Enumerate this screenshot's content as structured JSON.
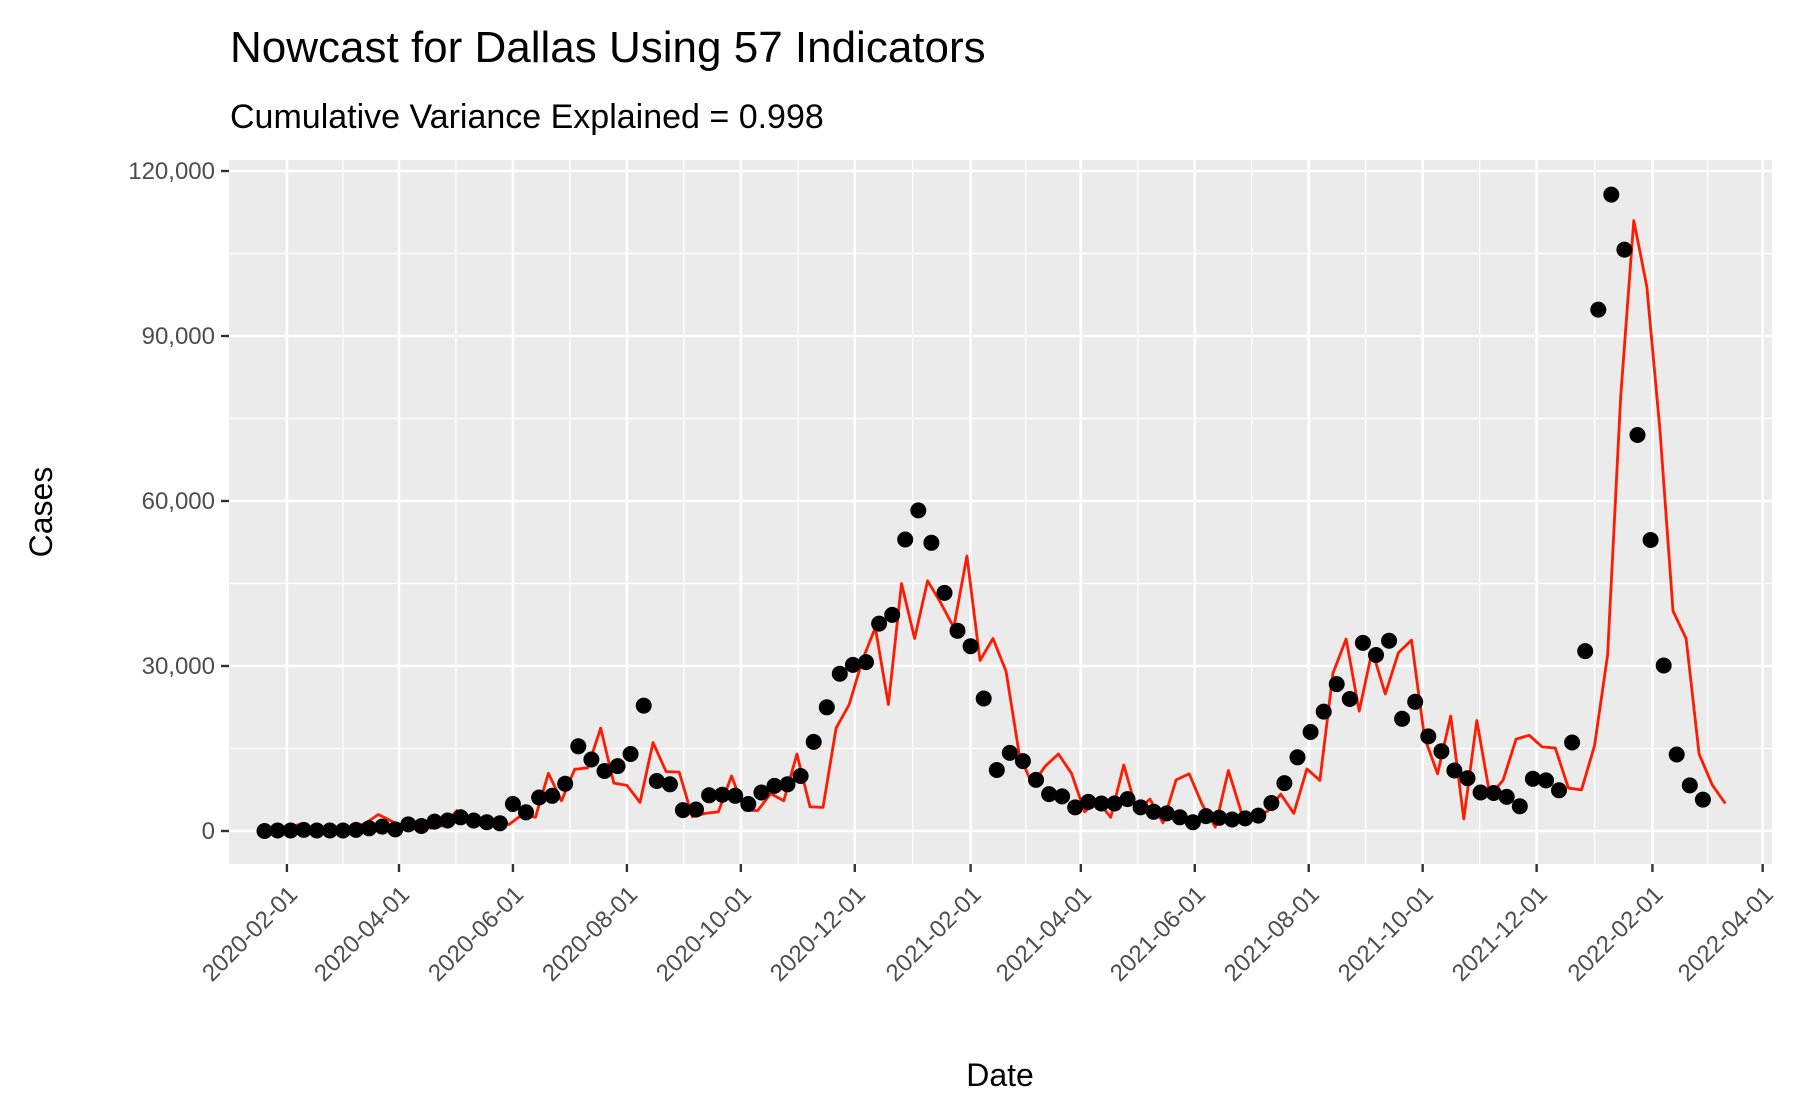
{
  "chart_data": {
    "type": "line",
    "title": "Nowcast for Dallas Using 57 Indicators",
    "subtitle": "Cumulative Variance Explained = 0.998",
    "xlabel": "Date",
    "ylabel": "Cases",
    "x_range": [
      "2020-01-01",
      "2022-04-06"
    ],
    "ylim": [
      -6000,
      122000
    ],
    "y_ticks": [
      0,
      30000,
      60000,
      90000,
      120000
    ],
    "y_tick_labels": [
      "0",
      "30,000",
      "60,000",
      "90,000",
      "120,000"
    ],
    "x_ticks": [
      "2020-02-01",
      "2020-04-01",
      "2020-06-01",
      "2020-08-01",
      "2020-10-01",
      "2020-12-01",
      "2021-02-01",
      "2021-04-01",
      "2021-06-01",
      "2021-08-01",
      "2021-10-01",
      "2021-12-01",
      "2022-02-01",
      "2022-04-01"
    ],
    "x_tick_labels": [
      "2020-02-01",
      "2020-04-01",
      "2020-06-01",
      "2020-08-01",
      "2020-10-01",
      "2020-12-01",
      "2021-02-01",
      "2021-04-01",
      "2021-06-01",
      "2021-08-01",
      "2021-10-01",
      "2021-12-01",
      "2022-02-01",
      "2022-04-01"
    ],
    "grid": true,
    "colors": {
      "panel": "#ebebeb",
      "grid": "#ffffff",
      "line": "#ff1a00",
      "points": "#000000"
    },
    "series": [
      {
        "style": "line",
        "color": "#ff1a00",
        "points": [
          [
            "2020-01-18",
            0
          ],
          [
            "2020-01-25",
            300
          ],
          [
            "2020-02-01",
            600
          ],
          [
            "2020-02-08",
            1200
          ],
          [
            "2020-02-15",
            200
          ],
          [
            "2020-02-22",
            100
          ],
          [
            "2020-02-29",
            300
          ],
          [
            "2020-03-07",
            600
          ],
          [
            "2020-03-14",
            1400
          ],
          [
            "2020-03-21",
            3000
          ],
          [
            "2020-03-28",
            1800
          ],
          [
            "2020-04-04",
            500
          ],
          [
            "2020-04-11",
            1500
          ],
          [
            "2020-04-18",
            500
          ],
          [
            "2020-04-25",
            1000
          ],
          [
            "2020-05-02",
            3700
          ],
          [
            "2020-05-09",
            1300
          ],
          [
            "2020-05-16",
            2300
          ],
          [
            "2020-05-23",
            1900
          ],
          [
            "2020-05-30",
            1200
          ],
          [
            "2020-06-06",
            3000
          ],
          [
            "2020-06-13",
            2500
          ],
          [
            "2020-06-20",
            10500
          ],
          [
            "2020-06-27",
            5500
          ],
          [
            "2020-07-04",
            11200
          ],
          [
            "2020-07-11",
            11500
          ],
          [
            "2020-07-18",
            18700
          ],
          [
            "2020-07-25",
            8700
          ],
          [
            "2020-08-01",
            8300
          ],
          [
            "2020-08-08",
            5200
          ],
          [
            "2020-08-15",
            16100
          ],
          [
            "2020-08-22",
            10800
          ],
          [
            "2020-08-29",
            10700
          ],
          [
            "2020-09-05",
            2600
          ],
          [
            "2020-09-12",
            3200
          ],
          [
            "2020-09-19",
            3500
          ],
          [
            "2020-09-26",
            10000
          ],
          [
            "2020-10-03",
            3800
          ],
          [
            "2020-10-10",
            3700
          ],
          [
            "2020-10-17",
            6800
          ],
          [
            "2020-10-24",
            5500
          ],
          [
            "2020-10-31",
            14000
          ],
          [
            "2020-11-07",
            4400
          ],
          [
            "2020-11-14",
            4300
          ],
          [
            "2020-11-21",
            18700
          ],
          [
            "2020-11-28",
            23000
          ],
          [
            "2020-12-05",
            31000
          ],
          [
            "2020-12-12",
            37000
          ],
          [
            "2020-12-19",
            23000
          ],
          [
            "2020-12-26",
            45000
          ],
          [
            "2021-01-02",
            35000
          ],
          [
            "2021-01-09",
            45500
          ],
          [
            "2021-01-16",
            41500
          ],
          [
            "2021-01-23",
            37000
          ],
          [
            "2021-01-30",
            50000
          ],
          [
            "2021-02-06",
            31000
          ],
          [
            "2021-02-13",
            35000
          ],
          [
            "2021-02-20",
            29000
          ],
          [
            "2021-02-27",
            14000
          ],
          [
            "2021-03-06",
            8400
          ],
          [
            "2021-03-13",
            11800
          ],
          [
            "2021-03-20",
            14000
          ],
          [
            "2021-03-27",
            10500
          ],
          [
            "2021-04-03",
            3500
          ],
          [
            "2021-04-10",
            5500
          ],
          [
            "2021-04-17",
            2500
          ],
          [
            "2021-04-24",
            12000
          ],
          [
            "2021-05-01",
            3600
          ],
          [
            "2021-05-08",
            5800
          ],
          [
            "2021-05-15",
            1500
          ],
          [
            "2021-05-22",
            9300
          ],
          [
            "2021-05-29",
            10400
          ],
          [
            "2021-06-05",
            4800
          ],
          [
            "2021-06-12",
            700
          ],
          [
            "2021-06-19",
            11000
          ],
          [
            "2021-06-26",
            3300
          ],
          [
            "2021-07-03",
            2600
          ],
          [
            "2021-07-10",
            3600
          ],
          [
            "2021-07-17",
            6700
          ],
          [
            "2021-07-24",
            3200
          ],
          [
            "2021-07-31",
            11300
          ],
          [
            "2021-08-07",
            9200
          ],
          [
            "2021-08-14",
            28700
          ],
          [
            "2021-08-21",
            34900
          ],
          [
            "2021-08-28",
            21800
          ],
          [
            "2021-09-04",
            32800
          ],
          [
            "2021-09-11",
            24900
          ],
          [
            "2021-09-18",
            32400
          ],
          [
            "2021-09-25",
            34700
          ],
          [
            "2021-10-02",
            17000
          ],
          [
            "2021-10-09",
            10400
          ],
          [
            "2021-10-16",
            20900
          ],
          [
            "2021-10-23",
            2200
          ],
          [
            "2021-10-30",
            20100
          ],
          [
            "2021-11-06",
            6500
          ],
          [
            "2021-11-13",
            9200
          ],
          [
            "2021-11-20",
            16700
          ],
          [
            "2021-11-27",
            17400
          ],
          [
            "2021-12-04",
            15300
          ],
          [
            "2021-12-11",
            15100
          ],
          [
            "2021-12-18",
            7800
          ],
          [
            "2021-12-25",
            7500
          ],
          [
            "2022-01-01",
            15500
          ],
          [
            "2022-01-08",
            32000
          ],
          [
            "2022-01-15",
            79000
          ],
          [
            "2022-01-22",
            111000
          ],
          [
            "2022-01-29",
            99000
          ],
          [
            "2022-02-05",
            73000
          ],
          [
            "2022-02-12",
            40000
          ],
          [
            "2022-02-19",
            35000
          ],
          [
            "2022-02-26",
            14000
          ],
          [
            "2022-03-05",
            8400
          ],
          [
            "2022-03-12",
            5000
          ]
        ]
      },
      {
        "style": "points",
        "color": "#000000",
        "points": [
          [
            "2020-01-20",
            0
          ],
          [
            "2020-01-27",
            100
          ],
          [
            "2020-02-03",
            100
          ],
          [
            "2020-02-10",
            200
          ],
          [
            "2020-02-17",
            100
          ],
          [
            "2020-02-24",
            100
          ],
          [
            "2020-03-02",
            100
          ],
          [
            "2020-03-09",
            200
          ],
          [
            "2020-03-16",
            500
          ],
          [
            "2020-03-23",
            800
          ],
          [
            "2020-03-30",
            300
          ],
          [
            "2020-04-06",
            1200
          ],
          [
            "2020-04-13",
            900
          ],
          [
            "2020-04-20",
            1700
          ],
          [
            "2020-04-27",
            1900
          ],
          [
            "2020-05-04",
            2500
          ],
          [
            "2020-05-11",
            1900
          ],
          [
            "2020-05-18",
            1600
          ],
          [
            "2020-05-25",
            1400
          ],
          [
            "2020-06-01",
            4900
          ],
          [
            "2020-06-08",
            3400
          ],
          [
            "2020-06-15",
            6100
          ],
          [
            "2020-06-22",
            6400
          ],
          [
            "2020-06-29",
            8600
          ],
          [
            "2020-07-06",
            15400
          ],
          [
            "2020-07-13",
            13000
          ],
          [
            "2020-07-20",
            10900
          ],
          [
            "2020-07-27",
            11800
          ],
          [
            "2020-08-03",
            14000
          ],
          [
            "2020-08-10",
            22800
          ],
          [
            "2020-08-17",
            9100
          ],
          [
            "2020-08-24",
            8500
          ],
          [
            "2020-08-31",
            3800
          ],
          [
            "2020-09-07",
            3900
          ],
          [
            "2020-09-14",
            6500
          ],
          [
            "2020-09-21",
            6600
          ],
          [
            "2020-09-28",
            6400
          ],
          [
            "2020-10-05",
            4900
          ],
          [
            "2020-10-12",
            7000
          ],
          [
            "2020-10-19",
            8200
          ],
          [
            "2020-10-26",
            8500
          ],
          [
            "2020-11-02",
            10000
          ],
          [
            "2020-11-09",
            16200
          ],
          [
            "2020-11-16",
            22500
          ],
          [
            "2020-11-23",
            28600
          ],
          [
            "2020-11-30",
            30200
          ],
          [
            "2020-12-07",
            30700
          ],
          [
            "2020-12-14",
            37700
          ],
          [
            "2020-12-21",
            39300
          ],
          [
            "2020-12-28",
            53000
          ],
          [
            "2021-01-04",
            58300
          ],
          [
            "2021-01-11",
            52400
          ],
          [
            "2021-01-18",
            43300
          ],
          [
            "2021-01-25",
            36400
          ],
          [
            "2021-02-01",
            33600
          ],
          [
            "2021-02-08",
            24100
          ],
          [
            "2021-02-15",
            11100
          ],
          [
            "2021-02-22",
            14200
          ],
          [
            "2021-03-01",
            12700
          ],
          [
            "2021-03-08",
            9300
          ],
          [
            "2021-03-15",
            6700
          ],
          [
            "2021-03-22",
            6300
          ],
          [
            "2021-03-29",
            4300
          ],
          [
            "2021-04-05",
            5300
          ],
          [
            "2021-04-12",
            5000
          ],
          [
            "2021-04-19",
            5000
          ],
          [
            "2021-04-26",
            5800
          ],
          [
            "2021-05-03",
            4300
          ],
          [
            "2021-05-10",
            3500
          ],
          [
            "2021-05-17",
            3200
          ],
          [
            "2021-05-24",
            2500
          ],
          [
            "2021-05-31",
            1600
          ],
          [
            "2021-06-07",
            2700
          ],
          [
            "2021-06-14",
            2400
          ],
          [
            "2021-06-21",
            2100
          ],
          [
            "2021-06-28",
            2300
          ],
          [
            "2021-07-05",
            2800
          ],
          [
            "2021-07-12",
            5100
          ],
          [
            "2021-07-19",
            8700
          ],
          [
            "2021-07-26",
            13400
          ],
          [
            "2021-08-02",
            18000
          ],
          [
            "2021-08-09",
            21700
          ],
          [
            "2021-08-16",
            26700
          ],
          [
            "2021-08-23",
            24000
          ],
          [
            "2021-08-30",
            34200
          ],
          [
            "2021-09-06",
            32000
          ],
          [
            "2021-09-13",
            34600
          ],
          [
            "2021-09-20",
            20400
          ],
          [
            "2021-09-27",
            23500
          ],
          [
            "2021-10-04",
            17200
          ],
          [
            "2021-10-11",
            14500
          ],
          [
            "2021-10-18",
            11000
          ],
          [
            "2021-10-25",
            9600
          ],
          [
            "2021-11-01",
            7000
          ],
          [
            "2021-11-08",
            6900
          ],
          [
            "2021-11-15",
            6200
          ],
          [
            "2021-11-22",
            4500
          ],
          [
            "2021-11-29",
            9500
          ],
          [
            "2021-12-06",
            9200
          ],
          [
            "2021-12-13",
            7400
          ],
          [
            "2021-12-20",
            16100
          ],
          [
            "2021-12-27",
            32700
          ],
          [
            "2022-01-03",
            94800
          ],
          [
            "2022-01-10",
            115700
          ],
          [
            "2022-01-17",
            105700
          ],
          [
            "2022-01-24",
            72000
          ],
          [
            "2022-01-31",
            52900
          ],
          [
            "2022-02-07",
            30100
          ],
          [
            "2022-02-14",
            13900
          ],
          [
            "2022-02-21",
            8300
          ],
          [
            "2022-02-28",
            5700
          ]
        ]
      }
    ]
  }
}
